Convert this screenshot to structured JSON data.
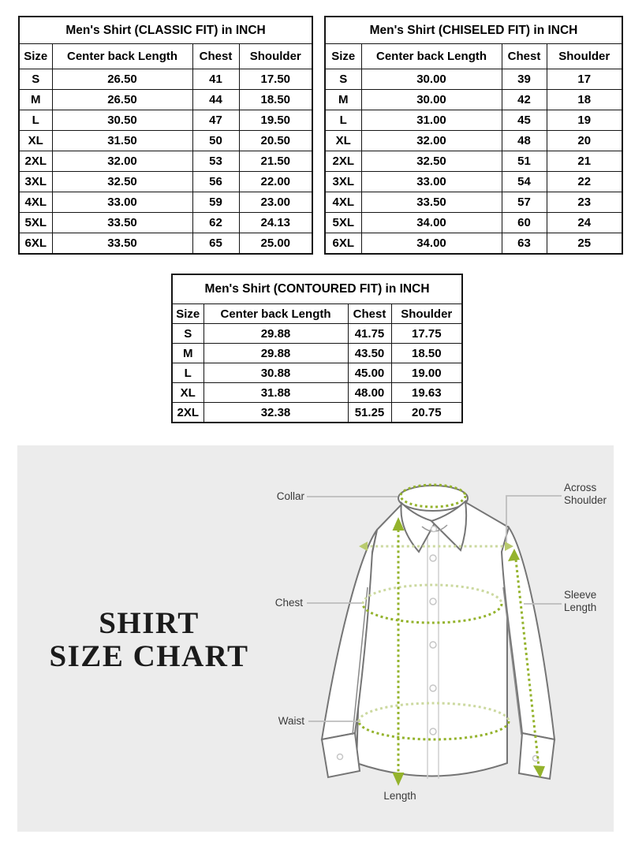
{
  "tables": [
    {
      "title": "Men's Shirt (CLASSIC FIT) in INCH",
      "columns": [
        "Size",
        "Center back Length",
        "Chest",
        "Shoulder"
      ],
      "rows": [
        [
          "S",
          "26.50",
          "41",
          "17.50"
        ],
        [
          "M",
          "26.50",
          "44",
          "18.50"
        ],
        [
          "L",
          "30.50",
          "47",
          "19.50"
        ],
        [
          "XL",
          "31.50",
          "50",
          "20.50"
        ],
        [
          "2XL",
          "32.00",
          "53",
          "21.50"
        ],
        [
          "3XL",
          "32.50",
          "56",
          "22.00"
        ],
        [
          "4XL",
          "33.00",
          "59",
          "23.00"
        ],
        [
          "5XL",
          "33.50",
          "62",
          "24.13"
        ],
        [
          "6XL",
          "33.50",
          "65",
          "25.00"
        ]
      ]
    },
    {
      "title": "Men's Shirt (CHISELED FIT) in INCH",
      "columns": [
        "Size",
        "Center back Length",
        "Chest",
        "Shoulder"
      ],
      "rows": [
        [
          "S",
          "30.00",
          "39",
          "17"
        ],
        [
          "M",
          "30.00",
          "42",
          "18"
        ],
        [
          "L",
          "31.00",
          "45",
          "19"
        ],
        [
          "XL",
          "32.00",
          "48",
          "20"
        ],
        [
          "2XL",
          "32.50",
          "51",
          "21"
        ],
        [
          "3XL",
          "33.00",
          "54",
          "22"
        ],
        [
          "4XL",
          "33.50",
          "57",
          "23"
        ],
        [
          "5XL",
          "34.00",
          "60",
          "24"
        ],
        [
          "6XL",
          "34.00",
          "63",
          "25"
        ]
      ]
    },
    {
      "title": "Men's Shirt (CONTOURED FIT) in INCH",
      "columns": [
        "Size",
        "Center back Length",
        "Chest",
        "Shoulder"
      ],
      "rows": [
        [
          "S",
          "29.88",
          "41.75",
          "17.75"
        ],
        [
          "M",
          "29.88",
          "43.50",
          "18.50"
        ],
        [
          "L",
          "30.88",
          "45.00",
          "19.00"
        ],
        [
          "XL",
          "31.88",
          "48.00",
          "19.63"
        ],
        [
          "2XL",
          "32.38",
          "51.25",
          "20.75"
        ]
      ]
    }
  ],
  "diagram": {
    "title_line1": "SHIRT",
    "title_line2": "SIZE CHART",
    "labels": {
      "collar": "Collar",
      "chest": "Chest",
      "waist": "Waist",
      "length": "Length",
      "across_shoulder": "Across Shoulder",
      "sleeve_length": "Sleeve Length"
    },
    "colors": {
      "panel_bg": "#ececec",
      "dash_dark": "#94b32c",
      "dash_light": "#ccd9a0",
      "dash_mid": "#b9cb6e",
      "shirt_outline": "#757575",
      "leader_line": "#bdbdbd",
      "label_text": "#3a3a3a"
    }
  }
}
